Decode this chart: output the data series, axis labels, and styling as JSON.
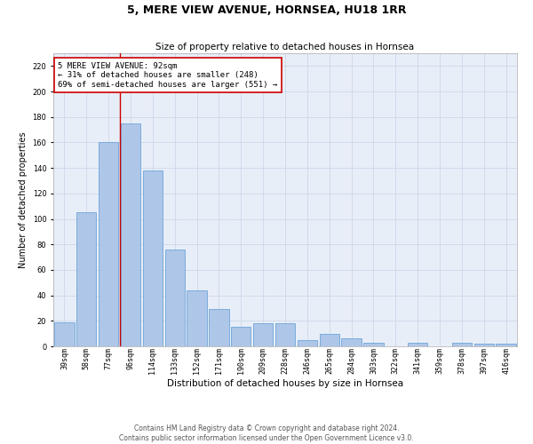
{
  "title": "5, MERE VIEW AVENUE, HORNSEA, HU18 1RR",
  "subtitle": "Size of property relative to detached houses in Hornsea",
  "xlabel": "Distribution of detached houses by size in Hornsea",
  "ylabel": "Number of detached properties",
  "categories": [
    "39sqm",
    "58sqm",
    "77sqm",
    "96sqm",
    "114sqm",
    "133sqm",
    "152sqm",
    "171sqm",
    "190sqm",
    "209sqm",
    "228sqm",
    "246sqm",
    "265sqm",
    "284sqm",
    "303sqm",
    "322sqm",
    "341sqm",
    "359sqm",
    "378sqm",
    "397sqm",
    "416sqm"
  ],
  "values": [
    19,
    105,
    160,
    175,
    138,
    76,
    44,
    29,
    15,
    18,
    18,
    5,
    10,
    6,
    3,
    0,
    3,
    0,
    3,
    2,
    2
  ],
  "bar_color": "#aec6e8",
  "bar_edge_color": "#5b9bd5",
  "vline_x_index": 2.5,
  "annotation_text": "5 MERE VIEW AVENUE: 92sqm\n← 31% of detached houses are smaller (248)\n69% of semi-detached houses are larger (551) →",
  "annotation_box_color": "#ffffff",
  "annotation_box_edge_color": "#cc0000",
  "vline_color": "#cc0000",
  "ylim": [
    0,
    230
  ],
  "yticks": [
    0,
    20,
    40,
    60,
    80,
    100,
    120,
    140,
    160,
    180,
    200,
    220
  ],
  "grid_color": "#c8d4e8",
  "background_color": "#e8eef8",
  "footer_line1": "Contains HM Land Registry data © Crown copyright and database right 2024.",
  "footer_line2": "Contains public sector information licensed under the Open Government Licence v3.0.",
  "title_fontsize": 9,
  "subtitle_fontsize": 7.5,
  "xlabel_fontsize": 7.5,
  "ylabel_fontsize": 7,
  "tick_fontsize": 6,
  "annotation_fontsize": 6.5,
  "footer_fontsize": 5.5
}
